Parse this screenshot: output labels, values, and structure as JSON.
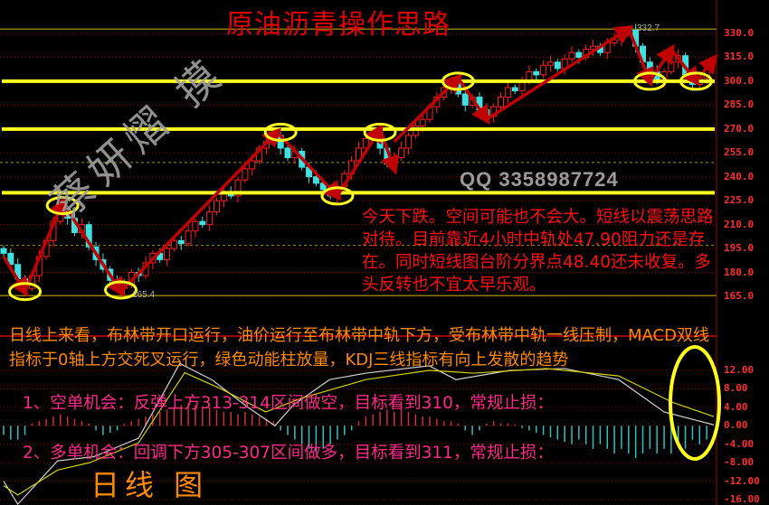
{
  "title": "原油沥青操作思路",
  "watermark": "蔡妍熠 摸",
  "qq": "QQ 3358987724",
  "red_note": "今天下跌。空间可能也不会大。短线以震荡思路对待。目前靠近4小时中轨处47.90阻力还是存在。同时短线图台阶分界点48.40还未收复。多头反转也不宜太早乐观。",
  "orange_note": "日线上来看，布林带开口运行，油价运行至布林带中轨下方，受布林带中轨一线压制，MACD双线指标于0轴上方交死叉运行，绿色动能柱放量，KDJ三线指标有向上发散的趋势",
  "opportunity_1": "1、空单机会：反弹上方313-314区间做空，目标看到310，常规止损：",
  "opportunity_2": "2、多单机会：回调下方305-307区间做多，目标看到311，常规止损：",
  "chart_label": "日线 图",
  "colors": {
    "up": "#ff2020",
    "down": "#40e0e0",
    "annotation": "#ffff20",
    "arrow": "#c00000",
    "grid": "#8b0000",
    "dif": "#d0d0d0",
    "dea": "#d0d000"
  },
  "chart_data": [
    {
      "type": "candlestick",
      "ylim": [
        165,
        330
      ],
      "yticks": [
        "330.0",
        "315.0",
        "300.0",
        "285.0",
        "270.0",
        "255.0",
        "240.0",
        "225.0",
        "210.0",
        "195.0",
        "180.0",
        "165.0"
      ],
      "high_label": "332.7",
      "low_label": "165.4",
      "closes": [
        192,
        185,
        176,
        170,
        178,
        190,
        200,
        212,
        220,
        214,
        205,
        210,
        196,
        188,
        182,
        175,
        170,
        172,
        180,
        178,
        186,
        192,
        188,
        195,
        200,
        198,
        206,
        212,
        210,
        218,
        225,
        230,
        228,
        238,
        245,
        250,
        258,
        262,
        266,
        258,
        252,
        256,
        246,
        240,
        236,
        232,
        228,
        234,
        242,
        250,
        258,
        264,
        268,
        258,
        248,
        252,
        258,
        266,
        272,
        276,
        284,
        290,
        296,
        300,
        292,
        285,
        290,
        282,
        278,
        284,
        290,
        296,
        294,
        300,
        306,
        304,
        310,
        312,
        308,
        314,
        318,
        315,
        320,
        322,
        318,
        324,
        326,
        330,
        332,
        322,
        312,
        306,
        300,
        306,
        312,
        316,
        304,
        298,
        302,
        308
      ],
      "support_resistance_levels": [
        300,
        270,
        230
      ],
      "circled_points": [
        [
          3,
          168
        ],
        [
          8.3,
          222
        ],
        [
          16.5,
          169
        ],
        [
          39,
          268
        ],
        [
          47,
          228
        ],
        [
          53,
          268
        ],
        [
          64,
          300
        ],
        [
          91,
          300
        ],
        [
          97.5,
          300
        ]
      ],
      "trend_arrows": [
        [
          [
            0,
            190
          ],
          [
            3,
            168
          ],
          [
            8.3,
            224
          ],
          [
            16.5,
            168
          ],
          [
            38.5,
            268
          ],
          [
            47,
            228
          ],
          [
            53,
            270
          ],
          [
            55,
            245
          ]
        ],
        [
          [
            55,
            262
          ],
          [
            64,
            302
          ],
          [
            68,
            276
          ],
          [
            88,
            333
          ],
          [
            91,
            300
          ],
          [
            94,
            320
          ],
          [
            97.5,
            300
          ],
          [
            100,
            314
          ]
        ]
      ]
    },
    {
      "type": "macd",
      "ylim": [
        -16,
        12
      ],
      "yticks": [
        "12.00",
        "8.00",
        "4.00",
        "0.00",
        "-4.00",
        "-8.00",
        "-12.00",
        "-16.00"
      ],
      "histogram": [
        -2,
        -3,
        -3,
        -2,
        0.5,
        1,
        1.5,
        2,
        2.5,
        2,
        1.5,
        1,
        0.5,
        -1,
        -2,
        -1.5,
        -1,
        0.5,
        1,
        1.5,
        2,
        2.5,
        3,
        3.5,
        4,
        4.5,
        5,
        4.5,
        4,
        4,
        3.5,
        3,
        3,
        2.5,
        3,
        2.5,
        2,
        1.5,
        1,
        -1,
        -2,
        -3,
        -4,
        -5,
        -6,
        -5,
        -4,
        -3,
        -2,
        -1,
        1,
        2,
        2.5,
        3,
        3.5,
        3,
        3.5,
        3,
        2.5,
        2,
        2,
        1.5,
        1,
        1,
        0.5,
        -1,
        -2,
        -1,
        0.5,
        1,
        0.5,
        0.5,
        0.3,
        -0.5,
        -1,
        -1.5,
        -2,
        -2.5,
        -3,
        -3.5,
        -4,
        -3,
        -4,
        -5,
        -4,
        -5,
        -6,
        -5,
        -6,
        -7,
        -6,
        -5,
        -6,
        -5,
        -6,
        -4,
        -5,
        -3,
        -4,
        -3
      ],
      "dif": [
        [
          0,
          -12
        ],
        [
          2,
          -17
        ],
        [
          7.6,
          -7.6
        ],
        [
          12.7,
          -6.7
        ],
        [
          19,
          -2.7
        ],
        [
          24.8,
          13.5
        ],
        [
          29.3,
          10
        ],
        [
          34.4,
          4
        ],
        [
          38.2,
          0
        ],
        [
          40.8,
          4.5
        ],
        [
          45.9,
          10
        ],
        [
          51,
          11.4
        ],
        [
          59.9,
          13
        ],
        [
          63.7,
          10
        ],
        [
          71.3,
          12
        ],
        [
          79,
          12.4
        ],
        [
          86.6,
          10
        ],
        [
          93,
          3
        ],
        [
          97.5,
          1.2
        ],
        [
          100,
          0.2
        ]
      ],
      "dea": [
        [
          0,
          -13
        ],
        [
          2,
          -15
        ],
        [
          7.6,
          -9.6
        ],
        [
          12.1,
          -8
        ],
        [
          19,
          -3.7
        ],
        [
          25.5,
          11.5
        ],
        [
          30.6,
          8
        ],
        [
          36.9,
          3
        ],
        [
          42,
          6
        ],
        [
          51,
          10
        ],
        [
          59.9,
          12
        ],
        [
          66.2,
          11.4
        ],
        [
          76.4,
          12.4
        ],
        [
          86.6,
          10.8
        ],
        [
          94.3,
          5
        ],
        [
          100,
          2
        ]
      ]
    }
  ]
}
